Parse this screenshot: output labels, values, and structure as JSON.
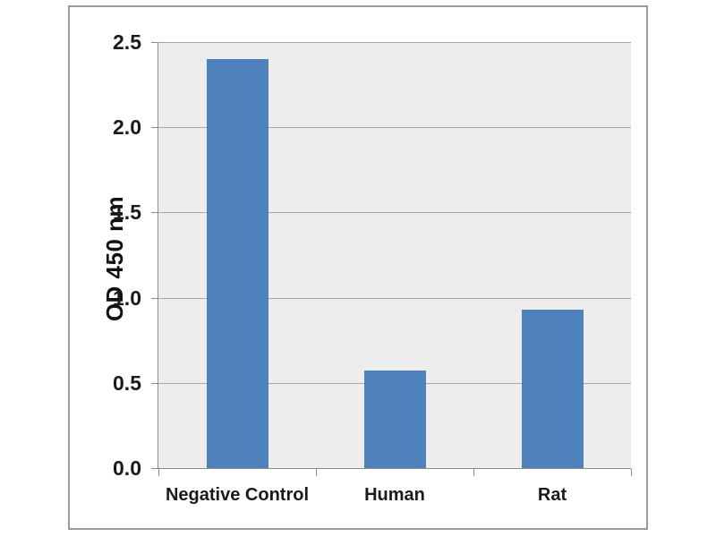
{
  "chart_data": {
    "type": "bar",
    "title": "",
    "categories": [
      "Negative Control",
      "Human",
      "Rat"
    ],
    "values": [
      2.4,
      0.57,
      0.93
    ],
    "xlabel": "",
    "ylabel": "OD 450 nm",
    "ylim": [
      0,
      2.5
    ],
    "ytick_step": 0.5,
    "ytick_labels": [
      "0.0",
      "0.5",
      "1.0",
      "1.5",
      "2.0",
      "2.5"
    ],
    "grid": true,
    "legend": false,
    "colors": {
      "bar": "#4f81bd",
      "plot_background": "#ededed",
      "gridline": "#a5a5a5",
      "axis": "#8c8c8c",
      "frame_border": "#9a9a9a",
      "text": "#1a1a1a"
    }
  }
}
